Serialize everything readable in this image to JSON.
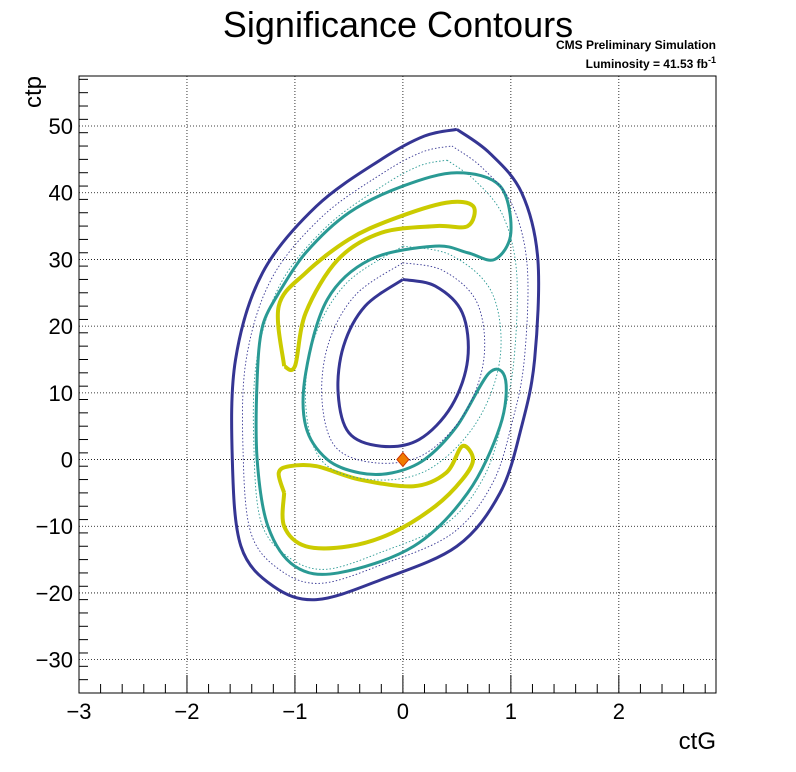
{
  "chart_data": {
    "type": "contour",
    "title": "Significance Contours",
    "annotation": {
      "line1": "CMS Preliminary Simulation",
      "line2_prefix": "Luminosity = 41.53 fb",
      "line2_sup": "-1"
    },
    "xlabel": "ctG",
    "ylabel": "ctp",
    "xlim": [
      -3,
      2.9
    ],
    "ylim": [
      -35,
      57.5
    ],
    "xticks": [
      -3,
      -2,
      -1,
      0,
      1,
      2
    ],
    "yticks": [
      -30,
      -20,
      -10,
      0,
      10,
      20,
      30,
      40,
      50
    ],
    "xtick_labels": [
      "−3",
      "−2",
      "−1",
      "0",
      "1",
      "2"
    ],
    "ytick_labels": [
      "−30",
      "−20",
      "−10",
      "0",
      "10",
      "20",
      "30",
      "40",
      "50"
    ],
    "grid": true,
    "best_fit_point": {
      "x": 0.0,
      "y": 0.0,
      "color": "#f07c00"
    },
    "contours": [
      {
        "level": "outer",
        "color": "#353593",
        "style": "solid",
        "width": 3,
        "points": [
          [
            0.5,
            49.5
          ],
          [
            0.8,
            46
          ],
          [
            1.1,
            40
          ],
          [
            1.25,
            30
          ],
          [
            1.22,
            15
          ],
          [
            1.1,
            5
          ],
          [
            0.9,
            -5
          ],
          [
            0.5,
            -13
          ],
          [
            -0.2,
            -18
          ],
          [
            -0.8,
            -21
          ],
          [
            -1.2,
            -19
          ],
          [
            -1.5,
            -13
          ],
          [
            -1.58,
            0
          ],
          [
            -1.55,
            15
          ],
          [
            -1.3,
            28
          ],
          [
            -0.8,
            38
          ],
          [
            -0.2,
            45
          ],
          [
            0.2,
            48.5
          ],
          [
            0.5,
            49.5
          ]
        ]
      },
      {
        "level": "outer-2",
        "color": "#2a9a94",
        "style": "solid",
        "width": 3,
        "points": [
          [
            -1.15,
            25
          ],
          [
            -0.9,
            31
          ],
          [
            -0.5,
            37
          ],
          [
            0,
            41
          ],
          [
            0.5,
            43
          ],
          [
            0.9,
            41
          ],
          [
            1,
            34
          ],
          [
            0.85,
            30
          ],
          [
            0.6,
            31
          ],
          [
            0.3,
            32
          ],
          [
            -0.3,
            30
          ],
          [
            -0.7,
            24
          ],
          [
            -0.9,
            13
          ],
          [
            -0.9,
            5
          ],
          [
            -0.7,
            0
          ],
          [
            -0.4,
            -2
          ],
          [
            -0.1,
            -2
          ],
          [
            0.2,
            0
          ],
          [
            0.5,
            5
          ],
          [
            0.8,
            13
          ],
          [
            0.95,
            12
          ],
          [
            0.9,
            5
          ],
          [
            0.6,
            -5
          ],
          [
            0.1,
            -13
          ],
          [
            -0.6,
            -17
          ],
          [
            -1,
            -16
          ],
          [
            -1.25,
            -10
          ],
          [
            -1.35,
            0
          ],
          [
            -1.35,
            12
          ],
          [
            -1.3,
            20
          ],
          [
            -1.15,
            25
          ]
        ]
      },
      {
        "level": "inner-1",
        "color": "#cbcb00",
        "style": "solid",
        "width": 4,
        "points": [
          [
            -1.1,
            14
          ],
          [
            -1.15,
            23
          ],
          [
            -0.9,
            28
          ],
          [
            -0.5,
            33
          ],
          [
            -0.1,
            36
          ],
          [
            0.4,
            38.5
          ],
          [
            0.65,
            38
          ],
          [
            0.6,
            35
          ],
          [
            0.3,
            35
          ],
          [
            -0.2,
            34
          ],
          [
            -0.6,
            30
          ],
          [
            -0.9,
            22
          ],
          [
            -1,
            14
          ],
          [
            -1.1,
            14
          ]
        ]
      },
      {
        "level": "inner-1b",
        "color": "#cbcb00",
        "style": "solid",
        "width": 4,
        "points": [
          [
            -1.1,
            -5
          ],
          [
            -1.15,
            -2
          ],
          [
            -1.05,
            -1
          ],
          [
            -0.8,
            -1
          ],
          [
            -0.4,
            -3
          ],
          [
            0.1,
            -4
          ],
          [
            0.4,
            -2
          ],
          [
            0.55,
            2
          ],
          [
            0.65,
            0
          ],
          [
            0.55,
            -3
          ],
          [
            0.3,
            -7
          ],
          [
            -0.1,
            -11
          ],
          [
            -0.5,
            -13
          ],
          [
            -0.9,
            -13
          ],
          [
            -1.1,
            -10
          ],
          [
            -1.1,
            -5
          ]
        ]
      },
      {
        "level": "inner-2",
        "color": "#353593",
        "style": "solid",
        "width": 3,
        "points": [
          [
            0,
            27
          ],
          [
            0.3,
            26
          ],
          [
            0.55,
            22
          ],
          [
            0.6,
            15
          ],
          [
            0.45,
            8
          ],
          [
            0.15,
            3
          ],
          [
            -0.2,
            2
          ],
          [
            -0.5,
            4
          ],
          [
            -0.6,
            10
          ],
          [
            -0.55,
            17
          ],
          [
            -0.35,
            23
          ],
          [
            0,
            27
          ]
        ]
      }
    ]
  }
}
